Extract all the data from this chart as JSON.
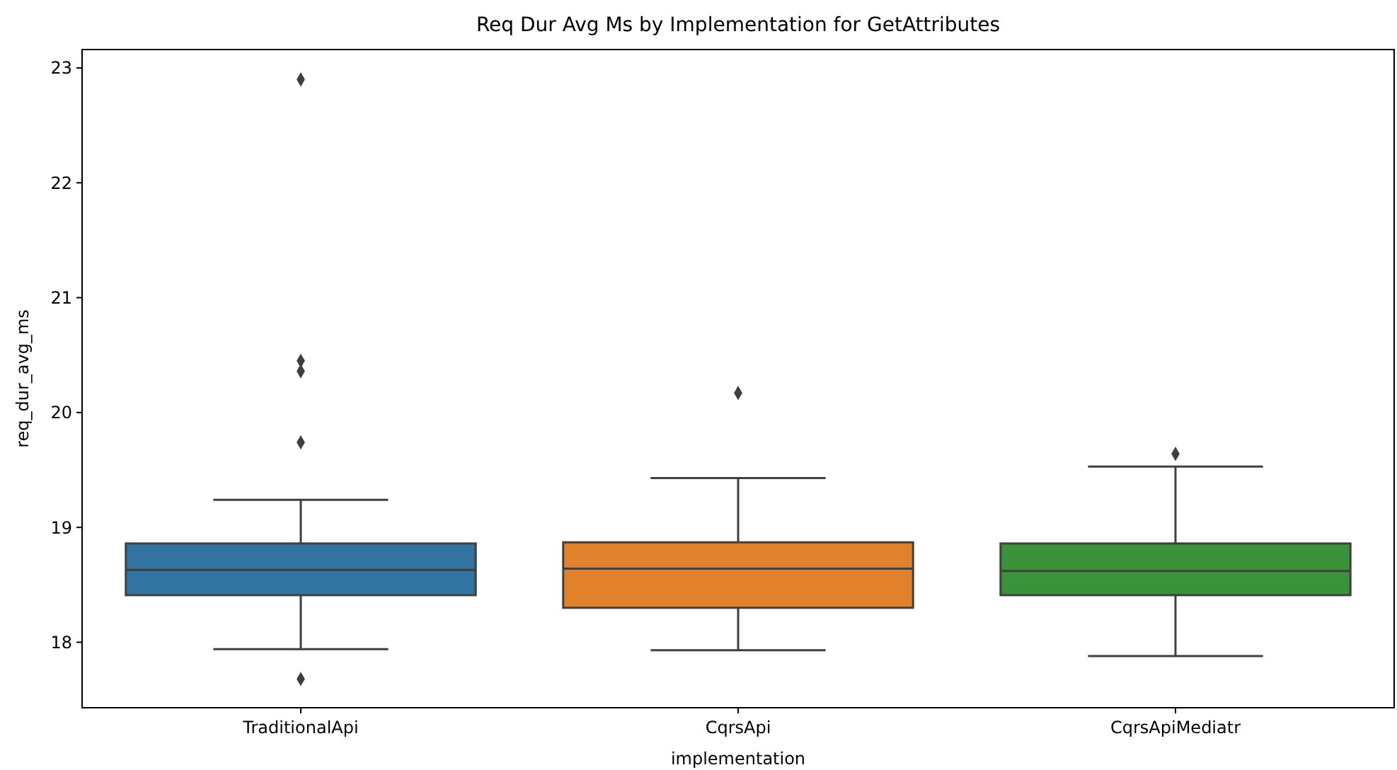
{
  "chart_data": {
    "type": "box",
    "title": "Req Dur Avg Ms by Implementation for GetAttributes",
    "xlabel": "implementation",
    "ylabel": "req_dur_avg_ms",
    "categories": [
      "TraditionalApi",
      "CqrsApi",
      "CqrsApiMediatr"
    ],
    "colors": [
      "#3274a1",
      "#e1812c",
      "#3a923a"
    ],
    "boxes": [
      {
        "low": 17.94,
        "q1": 18.41,
        "median": 18.63,
        "q3": 18.86,
        "high": 19.24,
        "outliers": [
          22.9,
          20.45,
          20.36,
          19.74,
          17.68
        ]
      },
      {
        "low": 17.93,
        "q1": 18.3,
        "median": 18.64,
        "q3": 18.87,
        "high": 19.43,
        "outliers": [
          20.17
        ]
      },
      {
        "low": 17.88,
        "q1": 18.41,
        "median": 18.62,
        "q3": 18.86,
        "high": 19.53,
        "outliers": [
          19.64
        ]
      }
    ],
    "ylim": [
      17.43,
      23.16
    ],
    "yticks": [
      18,
      19,
      20,
      21,
      22,
      23
    ],
    "marker": "diamond",
    "grid": false
  }
}
